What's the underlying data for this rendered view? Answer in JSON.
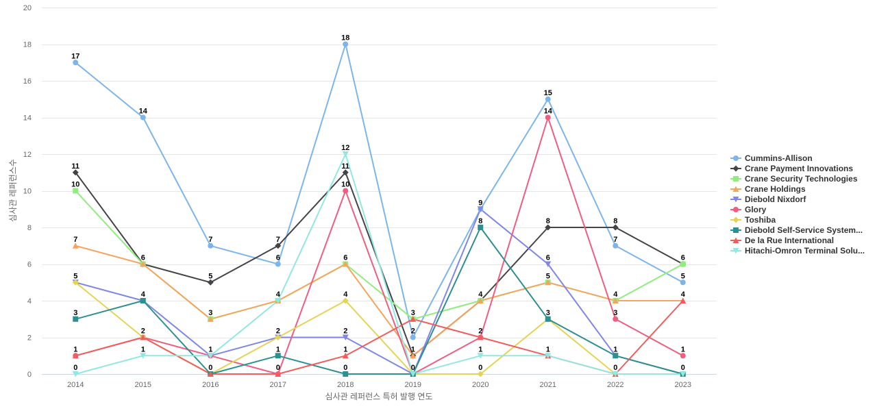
{
  "chart_data": {
    "type": "line",
    "title": "",
    "xlabel": "심사관 레퍼런스 특허 발행 연도",
    "ylabel": "심사관 레퍼런스수",
    "ylim": [
      0,
      20
    ],
    "yticks": [
      0,
      2,
      4,
      6,
      8,
      10,
      12,
      14,
      16,
      18,
      20
    ],
    "grid": true,
    "legend_position": "right",
    "x": [
      "2014",
      "2015",
      "2016",
      "2017",
      "2018",
      "2019",
      "2020",
      "2021",
      "2022",
      "2023"
    ],
    "series": [
      {
        "name": "Cummins-Allison",
        "color": "#7cb5ec",
        "marker": "circle",
        "values": [
          17,
          14,
          7,
          6,
          18,
          2,
          9,
          15,
          7,
          5
        ]
      },
      {
        "name": "Crane Payment Innovations",
        "color": "#434348",
        "marker": "diamond",
        "values": [
          11,
          6,
          5,
          7,
          11,
          1,
          4,
          8,
          8,
          6
        ]
      },
      {
        "name": "Crane Security Technologies",
        "color": "#90ed7d",
        "marker": "square",
        "values": [
          10,
          6,
          3,
          4,
          6,
          3,
          4,
          5,
          4,
          6
        ]
      },
      {
        "name": "Crane Holdings",
        "color": "#f7a35c",
        "marker": "triangle",
        "values": [
          7,
          6,
          3,
          4,
          6,
          1,
          4,
          5,
          4,
          4
        ]
      },
      {
        "name": "Diebold Nixdorf",
        "color": "#8085e9",
        "marker": "triangle-down",
        "values": [
          5,
          4,
          1,
          2,
          2,
          0,
          9,
          6,
          1,
          0
        ]
      },
      {
        "name": "Glory",
        "color": "#f15c80",
        "marker": "circle",
        "values": [
          1,
          2,
          1,
          0,
          10,
          0,
          2,
          14,
          3,
          1
        ]
      },
      {
        "name": "Toshiba",
        "color": "#e4d354",
        "marker": "diamond",
        "values": [
          5,
          2,
          0,
          2,
          4,
          0,
          0,
          3,
          0,
          0
        ]
      },
      {
        "name": "Diebold Self-Service System...",
        "color": "#2b908f",
        "marker": "square",
        "values": [
          3,
          4,
          0,
          1,
          0,
          0,
          8,
          3,
          1,
          0
        ]
      },
      {
        "name": "De la Rue International",
        "color": "#f45b5b",
        "marker": "triangle",
        "values": [
          1,
          2,
          0,
          0,
          1,
          3,
          2,
          1,
          0,
          4
        ]
      },
      {
        "name": "Hitachi-Omron Terminal Solu...",
        "color": "#91e8e1",
        "marker": "triangle-down",
        "values": [
          0,
          1,
          1,
          4,
          12,
          0,
          1,
          1,
          0,
          0
        ]
      }
    ],
    "data_labels": [
      {
        "x": "2014",
        "y": 17,
        "text": "17"
      },
      {
        "x": "2014",
        "y": 11,
        "text": "11"
      },
      {
        "x": "2014",
        "y": 10,
        "text": "10"
      },
      {
        "x": "2014",
        "y": 7,
        "text": "7"
      },
      {
        "x": "2014",
        "y": 5,
        "text": "5"
      },
      {
        "x": "2014",
        "y": 3,
        "text": "3"
      },
      {
        "x": "2014",
        "y": 1,
        "text": "1"
      },
      {
        "x": "2014",
        "y": 0,
        "text": "0"
      },
      {
        "x": "2015",
        "y": 14,
        "text": "14"
      },
      {
        "x": "2015",
        "y": 6,
        "text": "6"
      },
      {
        "x": "2015",
        "y": 4,
        "text": "4"
      },
      {
        "x": "2015",
        "y": 2,
        "text": "2"
      },
      {
        "x": "2015",
        "y": 1,
        "text": "1"
      },
      {
        "x": "2016",
        "y": 7,
        "text": "7"
      },
      {
        "x": "2016",
        "y": 5,
        "text": "5"
      },
      {
        "x": "2016",
        "y": 3,
        "text": "3"
      },
      {
        "x": "2016",
        "y": 1,
        "text": "1"
      },
      {
        "x": "2016",
        "y": 0,
        "text": "0"
      },
      {
        "x": "2017",
        "y": 7,
        "text": "7"
      },
      {
        "x": "2017",
        "y": 6,
        "text": "6"
      },
      {
        "x": "2017",
        "y": 4,
        "text": "4"
      },
      {
        "x": "2017",
        "y": 2,
        "text": "2"
      },
      {
        "x": "2017",
        "y": 1,
        "text": "1"
      },
      {
        "x": "2017",
        "y": 0,
        "text": "0"
      },
      {
        "x": "2018",
        "y": 18,
        "text": "18"
      },
      {
        "x": "2018",
        "y": 12,
        "text": "12"
      },
      {
        "x": "2018",
        "y": 11,
        "text": "11"
      },
      {
        "x": "2018",
        "y": 10,
        "text": "10"
      },
      {
        "x": "2018",
        "y": 6,
        "text": "6"
      },
      {
        "x": "2018",
        "y": 4,
        "text": "4"
      },
      {
        "x": "2018",
        "y": 2,
        "text": "2"
      },
      {
        "x": "2018",
        "y": 1,
        "text": "1"
      },
      {
        "x": "2018",
        "y": 0,
        "text": "0"
      },
      {
        "x": "2019",
        "y": 3,
        "text": "3"
      },
      {
        "x": "2019",
        "y": 2,
        "text": "2"
      },
      {
        "x": "2019",
        "y": 1,
        "text": "1"
      },
      {
        "x": "2019",
        "y": 0,
        "text": "0"
      },
      {
        "x": "2020",
        "y": 9,
        "text": "9"
      },
      {
        "x": "2020",
        "y": 8,
        "text": "8"
      },
      {
        "x": "2020",
        "y": 4,
        "text": "4"
      },
      {
        "x": "2020",
        "y": 2,
        "text": "2"
      },
      {
        "x": "2020",
        "y": 1,
        "text": "1"
      },
      {
        "x": "2020",
        "y": 0,
        "text": "0"
      },
      {
        "x": "2021",
        "y": 15,
        "text": "15"
      },
      {
        "x": "2021",
        "y": 14,
        "text": "14"
      },
      {
        "x": "2021",
        "y": 8,
        "text": "8"
      },
      {
        "x": "2021",
        "y": 6,
        "text": "6"
      },
      {
        "x": "2021",
        "y": 5,
        "text": "5"
      },
      {
        "x": "2021",
        "y": 3,
        "text": "3"
      },
      {
        "x": "2021",
        "y": 1,
        "text": "1"
      },
      {
        "x": "2022",
        "y": 8,
        "text": "8"
      },
      {
        "x": "2022",
        "y": 7,
        "text": "7"
      },
      {
        "x": "2022",
        "y": 4,
        "text": "4"
      },
      {
        "x": "2022",
        "y": 3,
        "text": "3"
      },
      {
        "x": "2022",
        "y": 1,
        "text": "1"
      },
      {
        "x": "2022",
        "y": 0,
        "text": "0"
      },
      {
        "x": "2023",
        "y": 6,
        "text": "6"
      },
      {
        "x": "2023",
        "y": 5,
        "text": "5"
      },
      {
        "x": "2023",
        "y": 4,
        "text": "4"
      },
      {
        "x": "2023",
        "y": 1,
        "text": "1"
      },
      {
        "x": "2023",
        "y": 0,
        "text": "0"
      }
    ]
  }
}
